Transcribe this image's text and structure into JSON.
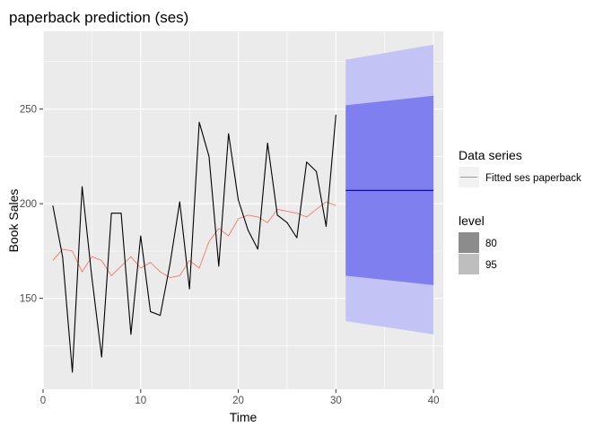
{
  "chart_data": {
    "type": "line",
    "title": "paperback prediction (ses)",
    "xlabel": "Time",
    "ylabel": "Book Sales",
    "xlim": [
      0,
      41
    ],
    "ylim": [
      102,
      291
    ],
    "x_ticks": [
      0,
      10,
      20,
      30,
      40
    ],
    "y_ticks": [
      150,
      200,
      250
    ],
    "grid": true,
    "colors": {
      "panel_background": "#EBEBEB",
      "grid": "#FFFFFF",
      "actual": "#000000",
      "fitted": "#F8766D",
      "forecast": "#00008B",
      "band_80": "#7F7FF0",
      "band_95": "#C3C3F5",
      "legend_key_80": "#8C8C8C",
      "legend_key_95": "#BEBEBE"
    },
    "series": [
      {
        "role": "actual",
        "x": [
          1,
          2,
          3,
          4,
          5,
          6,
          7,
          8,
          9,
          10,
          11,
          12,
          13,
          14,
          15,
          16,
          17,
          18,
          19,
          20,
          21,
          22,
          23,
          24,
          25,
          26,
          27,
          28,
          29,
          30
        ],
        "values": [
          199,
          172,
          111,
          209,
          161,
          119,
          195,
          195,
          131,
          183,
          143,
          141,
          168,
          201,
          155,
          243,
          225,
          167,
          237,
          202,
          186,
          176,
          232,
          194,
          190,
          182,
          222,
          217,
          188,
          247
        ]
      },
      {
        "role": "fitted",
        "name": "Fitted ses paperback",
        "x": [
          1,
          2,
          3,
          4,
          5,
          6,
          7,
          8,
          9,
          10,
          11,
          12,
          13,
          14,
          15,
          16,
          17,
          18,
          19,
          20,
          21,
          22,
          23,
          24,
          25,
          26,
          27,
          28,
          29,
          30
        ],
        "values": [
          170,
          176,
          175,
          164,
          172,
          170,
          162,
          167,
          172,
          166,
          169,
          164,
          161,
          162,
          170,
          166,
          180,
          187,
          183,
          192,
          194,
          193,
          190,
          197,
          196,
          195,
          193,
          197,
          201,
          199
        ]
      },
      {
        "role": "forecast",
        "x": [
          31,
          40
        ],
        "values": [
          207,
          207
        ],
        "lo80": [
          162,
          157
        ],
        "hi80": [
          252,
          257
        ],
        "lo95": [
          138,
          131
        ],
        "hi95": [
          276,
          284
        ]
      }
    ],
    "legend": {
      "placement": "right",
      "series_title": "Data series",
      "series_items": [
        "Fitted ses paperback"
      ],
      "level_title": "level",
      "level_items": [
        "80",
        "95"
      ]
    }
  }
}
